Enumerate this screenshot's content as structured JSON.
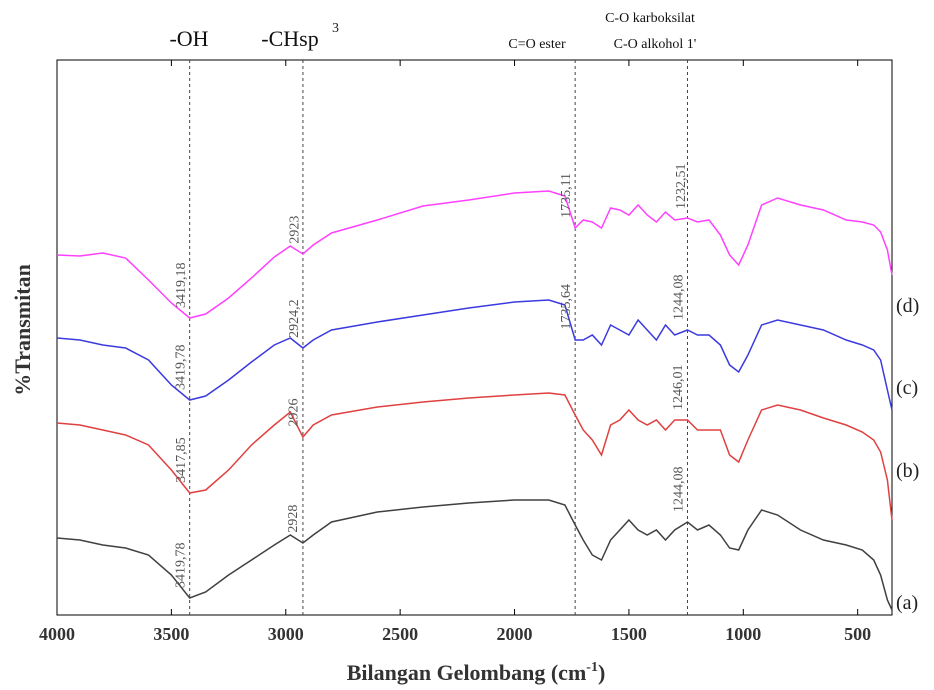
{
  "chart_data": {
    "type": "line",
    "xlabel": "Bilangan Gelombang (cm",
    "xlabel_sup": "-1",
    "xlabel_end": ")",
    "ylabel": "%Transmitan",
    "annotations": [
      "-OH",
      "-CHsp",
      "3",
      "C=O ester",
      "C-O karboksilat",
      "C-O alkohol 1'"
    ],
    "vlines": [
      3420,
      2925,
      1735,
      1244
    ],
    "xlim": [
      4000,
      350
    ],
    "xticks": [
      4000,
      3500,
      3000,
      2500,
      2000,
      1500,
      1000,
      500
    ],
    "ylim": [
      0,
      555
    ],
    "x": [
      4000,
      3900,
      3800,
      3700,
      3600,
      3500,
      3420,
      3350,
      3250,
      3150,
      3050,
      2980,
      2925,
      2880,
      2800,
      2600,
      2400,
      2200,
      2000,
      1850,
      1780,
      1735,
      1700,
      1660,
      1620,
      1580,
      1540,
      1500,
      1460,
      1420,
      1380,
      1340,
      1300,
      1244,
      1200,
      1150,
      1100,
      1060,
      1020,
      980,
      920,
      850,
      750,
      650,
      550,
      480,
      430,
      400,
      370,
      350
    ],
    "series": [
      {
        "name": "(a)",
        "color": "#404040",
        "peaks": [
          3419.78,
          2928,
          1244.08
        ],
        "peak_labels": [
          "3419,78",
          "2928",
          "1244,08"
        ],
        "values": [
          77,
          75,
          70,
          67,
          60,
          40,
          17,
          23,
          40,
          55,
          70,
          80,
          72,
          80,
          93,
          103,
          108,
          112,
          115,
          115,
          110,
          90,
          75,
          60,
          55,
          75,
          85,
          95,
          85,
          80,
          85,
          75,
          85,
          93,
          85,
          90,
          80,
          67,
          65,
          85,
          105,
          100,
          85,
          75,
          70,
          65,
          55,
          40,
          15,
          5
        ]
      },
      {
        "name": "(b)",
        "color": "#e04040",
        "peaks": [
          3417.85,
          2926,
          1246.01
        ],
        "peak_labels": [
          "3417,85",
          "2926",
          "1246,01"
        ],
        "values": [
          192,
          190,
          185,
          180,
          170,
          145,
          122,
          125,
          145,
          170,
          190,
          203,
          178,
          190,
          200,
          208,
          213,
          217,
          220,
          222,
          220,
          200,
          185,
          175,
          160,
          190,
          195,
          205,
          195,
          190,
          195,
          185,
          195,
          195,
          185,
          185,
          185,
          160,
          153,
          175,
          205,
          210,
          205,
          197,
          190,
          183,
          175,
          163,
          135,
          95
        ]
      },
      {
        "name": "(c)",
        "color": "#3a3adf",
        "peaks": [
          3419.78,
          2924.2,
          1735.64,
          1244.08
        ],
        "peak_labels": [
          "3419,78",
          "2924,2",
          "1735,64",
          "1244,08"
        ],
        "values": [
          277,
          275,
          270,
          267,
          255,
          230,
          215,
          219,
          235,
          253,
          270,
          277,
          267,
          275,
          285,
          293,
          300,
          307,
          313,
          315,
          310,
          275,
          275,
          280,
          270,
          290,
          285,
          280,
          295,
          285,
          275,
          290,
          280,
          285,
          280,
          280,
          270,
          250,
          243,
          260,
          290,
          295,
          290,
          285,
          275,
          270,
          265,
          255,
          225,
          205
        ]
      },
      {
        "name": "(d)",
        "color": "#ff40ff",
        "peaks": [
          3419.18,
          2923,
          1735.11,
          1232.51
        ],
        "peak_labels": [
          "3419,18",
          "2923",
          "1735,11",
          "1232,51"
        ],
        "values": [
          360,
          359,
          362,
          357,
          335,
          312,
          297,
          301,
          317,
          337,
          358,
          369,
          361,
          370,
          382,
          395,
          409,
          415,
          422,
          424,
          419,
          387,
          395,
          393,
          387,
          407,
          405,
          400,
          410,
          400,
          393,
          403,
          395,
          397,
          393,
          395,
          380,
          360,
          350,
          370,
          410,
          417,
          410,
          405,
          395,
          393,
          390,
          383,
          365,
          340
        ]
      }
    ]
  }
}
